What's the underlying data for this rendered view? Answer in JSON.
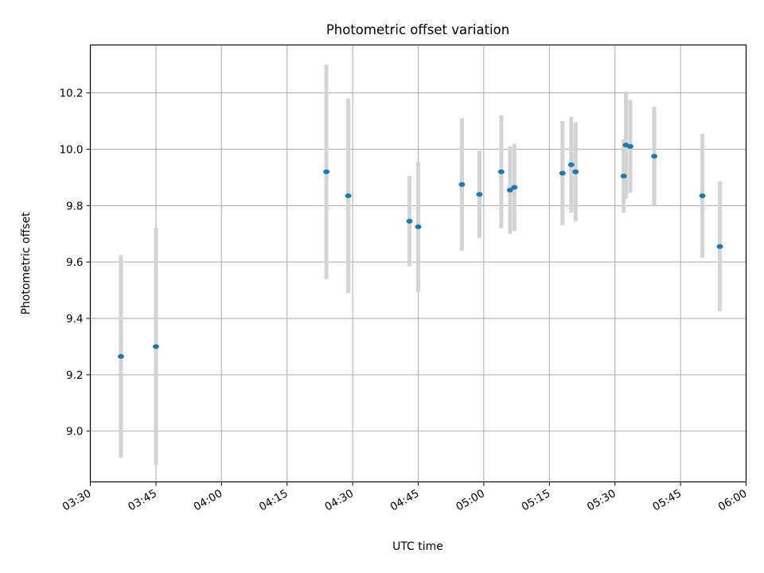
{
  "chart_data": {
    "type": "scatter",
    "title": "Photometric offset variation",
    "xlabel": "UTC time",
    "ylabel": "Photometric offset",
    "xlim": [
      "03:30",
      "06:00"
    ],
    "ylim": [
      8.82,
      10.37
    ],
    "x_ticks": [
      "03:30",
      "03:45",
      "04:00",
      "04:15",
      "04:30",
      "04:45",
      "05:00",
      "05:15",
      "05:30",
      "05:45",
      "06:00"
    ],
    "y_ticks": [
      9.0,
      9.2,
      9.4,
      9.6,
      9.8,
      10.0,
      10.2
    ],
    "grid": true,
    "errorbar_color": "#d3d3d3",
    "point_color": "#1f77b4",
    "points": [
      {
        "x": "03:37",
        "y": 9.265,
        "err": 0.36
      },
      {
        "x": "03:45",
        "y": 9.3,
        "err": 0.42
      },
      {
        "x": "04:24",
        "y": 9.92,
        "err": 0.38
      },
      {
        "x": "04:29",
        "y": 9.835,
        "err": 0.345
      },
      {
        "x": "04:43",
        "y": 9.745,
        "err": 0.16
      },
      {
        "x": "04:45",
        "y": 9.725,
        "err": 0.23
      },
      {
        "x": "04:55",
        "y": 9.875,
        "err": 0.235
      },
      {
        "x": "04:59",
        "y": 9.84,
        "err": 0.155
      },
      {
        "x": "05:04",
        "y": 9.92,
        "err": 0.2
      },
      {
        "x": "05:06",
        "y": 9.855,
        "err": 0.155
      },
      {
        "x": "05:07",
        "y": 9.865,
        "err": 0.155
      },
      {
        "x": "05:18",
        "y": 9.915,
        "err": 0.185
      },
      {
        "x": "05:20",
        "y": 9.945,
        "err": 0.17
      },
      {
        "x": "05:21",
        "y": 9.92,
        "err": 0.175
      },
      {
        "x": "05:32",
        "y": 9.905,
        "err": 0.13
      },
      {
        "x": "05:32.5",
        "y": 10.015,
        "err": 0.19
      },
      {
        "x": "05:33.5",
        "y": 10.01,
        "err": 0.165
      },
      {
        "x": "05:39",
        "y": 9.975,
        "err": 0.175
      },
      {
        "x": "05:50",
        "y": 9.835,
        "err": 0.22
      },
      {
        "x": "05:54",
        "y": 9.655,
        "err": 0.23
      }
    ]
  }
}
